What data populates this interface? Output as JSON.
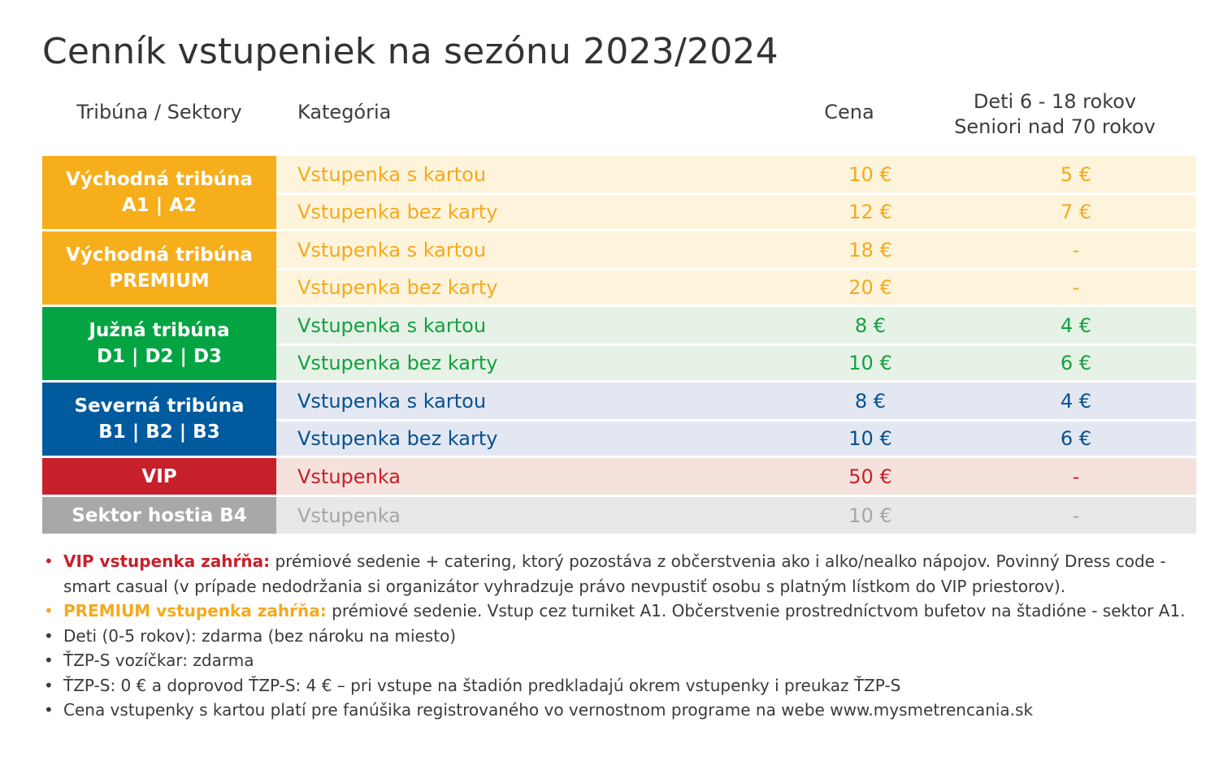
{
  "title": "Cenník vstupeniek na sezónu 2023/2024",
  "header": {
    "sector": "Tribúna / Sektory",
    "category": "Kategória",
    "price": "Cena",
    "reduced_line1": "Deti 6 - 18 rokov",
    "reduced_line2": "Seniori nad 70 rokov"
  },
  "groups": [
    {
      "sector_line1": "Východná tribúna",
      "sector_line2": "A1 | A2",
      "color": "#f7ae1b",
      "row_bg": "#fef4dc",
      "text_color": "#f5a91d",
      "rows": [
        {
          "category": "Vstupenka s kartou",
          "price": "10 €",
          "reduced": "5 €"
        },
        {
          "category": "Vstupenka bez karty",
          "price": "12 €",
          "reduced": "7 €"
        }
      ]
    },
    {
      "sector_line1": "Východná tribúna",
      "sector_line2": "PREMIUM",
      "color": "#f7ae1b",
      "row_bg": "#fef4dc",
      "text_color": "#f5a91d",
      "rows": [
        {
          "category": "Vstupenka s kartou",
          "price": "18 €",
          "reduced": "-"
        },
        {
          "category": "Vstupenka bez karty",
          "price": "20 €",
          "reduced": "-"
        }
      ]
    },
    {
      "sector_line1": "Južná tribúna",
      "sector_line2": "D1 | D2 | D3",
      "color": "#04a443",
      "row_bg": "#e6f2e6",
      "text_color": "#14a040",
      "rows": [
        {
          "category": "Vstupenka s kartou",
          "price": "8 €",
          "reduced": "4 €"
        },
        {
          "category": "Vstupenka bez karty",
          "price": "10 €",
          "reduced": "6 €"
        }
      ]
    },
    {
      "sector_line1": "Severná tribúna",
      "sector_line2": "B1 | B2 | B3",
      "color": "#005a9e",
      "row_bg": "#e3e7f1",
      "text_color": "#07518e",
      "rows": [
        {
          "category": "Vstupenka s kartou",
          "price": "8 €",
          "reduced": "4 €"
        },
        {
          "category": "Vstupenka bez karty",
          "price": "10 €",
          "reduced": "6 €"
        }
      ]
    },
    {
      "sector_line1": "VIP",
      "sector_line2": "",
      "color": "#c8202b",
      "row_bg": "#f6e2dc",
      "text_color": "#c8202b",
      "rows": [
        {
          "category": "Vstupenka",
          "price": "50 €",
          "reduced": "-"
        }
      ]
    },
    {
      "sector_line1": "Sektor hostia B4",
      "sector_line2": "",
      "color": "#a7a8aa",
      "row_bg": "#e8e8e8",
      "text_color": "#a5a6a8",
      "rows": [
        {
          "category": "Vstupenka",
          "price": "10 €",
          "reduced": "-"
        }
      ]
    }
  ],
  "notes": [
    {
      "bold": "VIP vstupenka zahŕňa:",
      "bold_color": "#c8202b",
      "bullet_color": "#c8202b",
      "text": " prémiové sedenie + catering, ktorý pozostáva z občerstvenia ako i alko/nealko nápojov. Povinný Dress code - smart casual (v prípade nedodržania si organizátor vyhradzuje právo nevpustiť osobu s platným lístkom do VIP priestorov)."
    },
    {
      "bold": "PREMIUM vstupenka zahŕňa:",
      "bold_color": "#f5a91d",
      "bullet_color": "#f5a91d",
      "text": " prémiové sedenie. Vstup cez turniket A1. Občerstvenie prostredníctvom bufetov na štadióne - sektor A1."
    },
    {
      "bold": "",
      "bold_color": "",
      "bullet_color": "#3a3a3a",
      "text": "Deti (0-5 rokov): zdarma (bez nároku na miesto)"
    },
    {
      "bold": "",
      "bold_color": "",
      "bullet_color": "#3a3a3a",
      "text": "ŤZP-S vozíčkar: zdarma"
    },
    {
      "bold": "",
      "bold_color": "",
      "bullet_color": "#3a3a3a",
      "text": "ŤZP-S: 0 € a doprovod ŤZP-S: 4 € – pri vstupe na štadión predkladajú okrem vstupenky i preukaz ŤZP-S"
    },
    {
      "bold": "",
      "bold_color": "",
      "bullet_color": "#3a3a3a",
      "text": "Cena vstupenky s kartou platí pre fanúšika registrovaného vo vernostnom programe na webe www.mysmetrencania.sk"
    }
  ],
  "bullet_char": "•"
}
